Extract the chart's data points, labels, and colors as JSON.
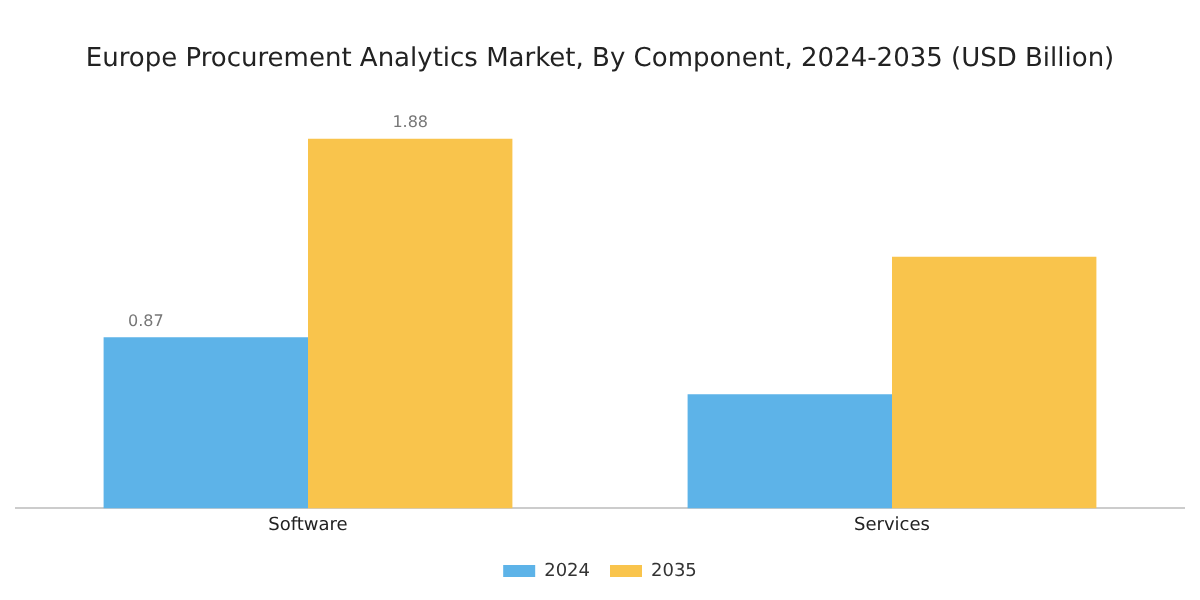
{
  "chart_data": {
    "type": "bar",
    "title": "Europe Procurement Analytics Market, By Component, 2024-2035 (USD Billion)",
    "categories": [
      "Software",
      "Services"
    ],
    "series": [
      {
        "name": "2024",
        "color": "#5db3e8",
        "values": [
          0.87,
          0.58
        ],
        "value_labels": [
          "0.87",
          null
        ]
      },
      {
        "name": "2035",
        "color": "#f9c44c",
        "values": [
          1.88,
          1.28
        ],
        "value_labels": [
          "1.88",
          null
        ]
      }
    ],
    "legend": "bottom",
    "grid": false
  }
}
